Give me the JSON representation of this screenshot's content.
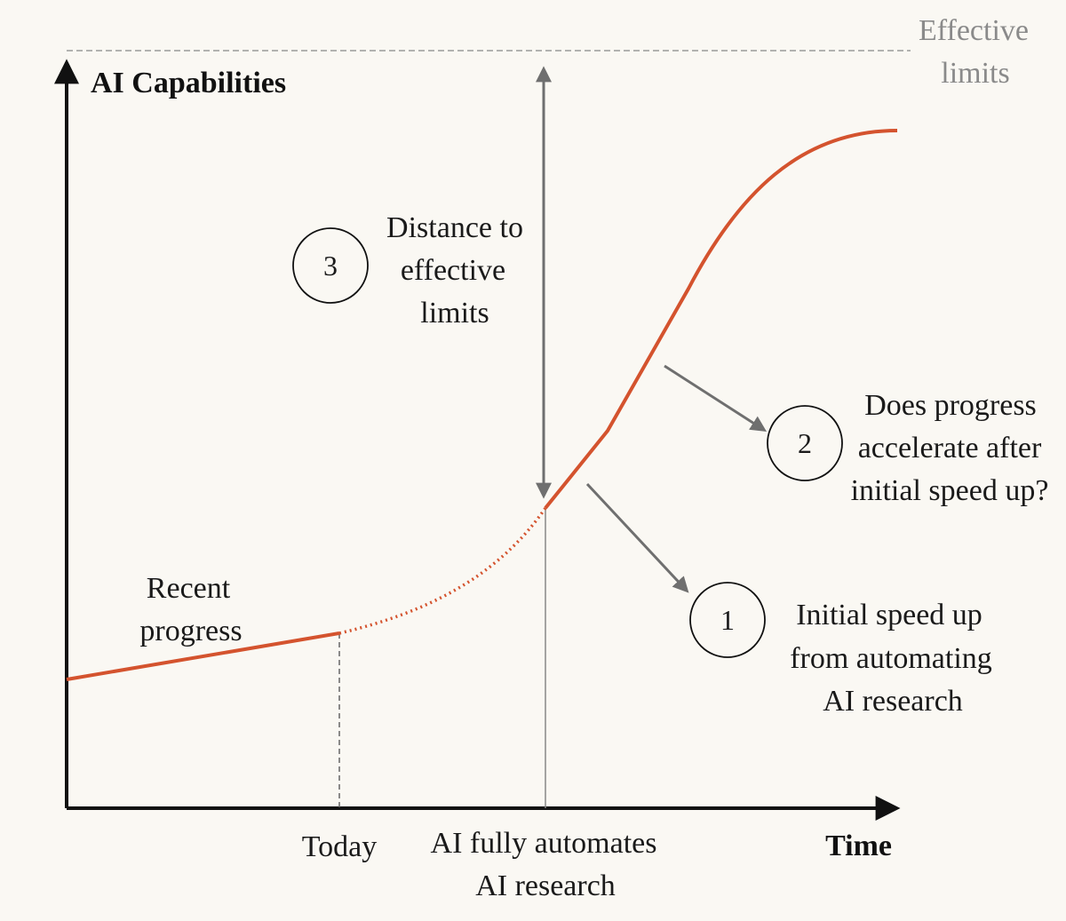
{
  "title": "AI Capabilities",
  "axes": {
    "y_label": "AI Capabilities",
    "x_label": "Time"
  },
  "limits_label": [
    "Effective",
    "limits"
  ],
  "x_markers": {
    "today": "Today",
    "automation": [
      "AI fully automates",
      "AI research"
    ]
  },
  "curve_segments": {
    "recent": [
      "Recent",
      "progress"
    ]
  },
  "annotations": [
    {
      "number": "1",
      "text": [
        "Initial speed up",
        "from automating",
        "AI research"
      ]
    },
    {
      "number": "2",
      "text": [
        "Does progress",
        "accelerate after",
        "initial speed up?"
      ]
    },
    {
      "number": "3",
      "text": [
        "Distance to",
        "effective",
        "limits"
      ]
    }
  ],
  "colors": {
    "curve": "#d4532e",
    "axis": "#111111",
    "arrow": "#6f6f6f",
    "limit_line": "#9a9a9a",
    "background": "#faf8f3"
  }
}
